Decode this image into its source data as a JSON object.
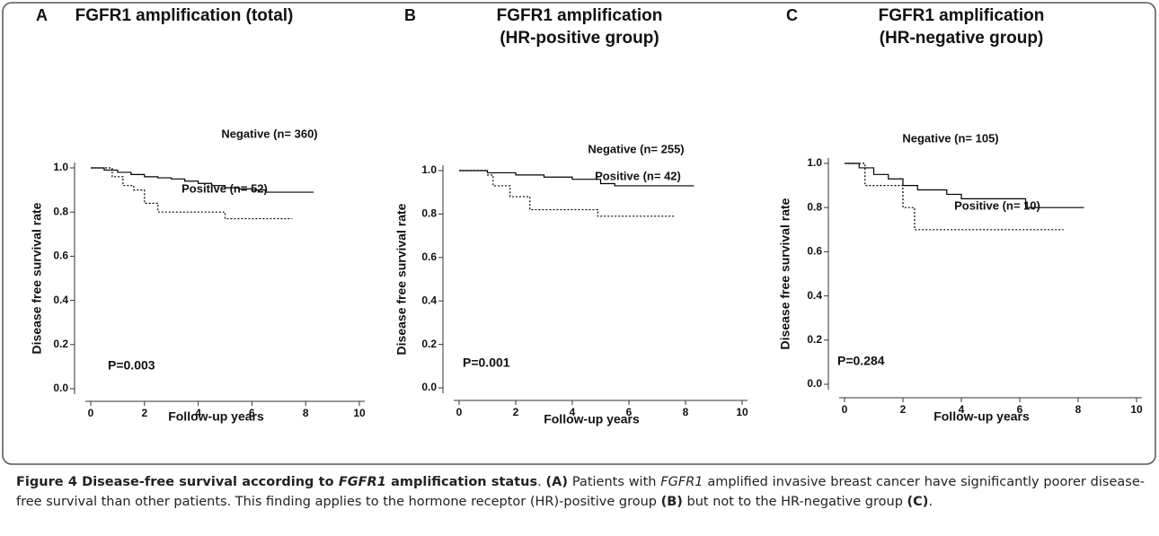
{
  "chart_data": [
    {
      "type": "line",
      "panel_label": "A",
      "title": [
        "FGFR1 amplification (total)"
      ],
      "xlabel": "Follow-up years",
      "ylabel": "Disease free survival rate",
      "annotation": "P=0.003",
      "xlim": [
        0,
        10
      ],
      "xticks": [
        0,
        2,
        4,
        6,
        8,
        10
      ],
      "ylim": [
        0,
        1
      ],
      "yticks": [
        {
          "value": 0,
          "label": "0.0"
        },
        {
          "value": 0.2,
          "label": "0.2"
        },
        {
          "value": 0.4,
          "label": "0.4"
        },
        {
          "value": 0.6,
          "label": "0.6"
        },
        {
          "value": 0.8,
          "label": "0.8"
        },
        {
          "value": 1,
          "label": "1.0"
        }
      ],
      "series": [
        {
          "name": "Negative (n= 360)",
          "color": "#000000",
          "line_style": "solid",
          "x": [
            0,
            0.5,
            1,
            1.5,
            2,
            2.5,
            3,
            3.5,
            4,
            4.5,
            5,
            5.5,
            6,
            6.5,
            7,
            7.5,
            8.3
          ],
          "values": [
            1,
            0.99,
            0.98,
            0.97,
            0.96,
            0.955,
            0.95,
            0.94,
            0.93,
            0.92,
            0.91,
            0.905,
            0.9,
            0.89,
            0.89,
            0.89,
            0.89
          ]
        },
        {
          "name": "Positive (n= 52)",
          "color": "#000000",
          "line_style": "dotted",
          "x": [
            0,
            0.8,
            1.2,
            1.6,
            2,
            2.5,
            5,
            7.5
          ],
          "values": [
            1,
            0.96,
            0.92,
            0.9,
            0.84,
            0.8,
            0.77,
            0.77
          ]
        }
      ]
    },
    {
      "type": "line",
      "panel_label": "B",
      "title": [
        "FGFR1 amplification",
        "(HR-positive group)"
      ],
      "xlabel": "Follow-up years",
      "ylabel": "Disease free survival rate",
      "annotation": "P=0.001",
      "xlim": [
        0,
        10
      ],
      "xticks": [
        0,
        2,
        4,
        6,
        8,
        10
      ],
      "ylim": [
        0,
        1
      ],
      "yticks": [
        {
          "value": 0,
          "label": "0.0"
        },
        {
          "value": 0.2,
          "label": "0.2"
        },
        {
          "value": 0.4,
          "label": "0.4"
        },
        {
          "value": 0.6,
          "label": "0.6"
        },
        {
          "value": 0.8,
          "label": "0.8"
        },
        {
          "value": 1,
          "label": "1.0"
        }
      ],
      "series": [
        {
          "name": "Negative (n= 255)",
          "color": "#000000",
          "line_style": "solid",
          "x": [
            0,
            1,
            2,
            3,
            4,
            5,
            5.5,
            8.3
          ],
          "values": [
            1,
            0.99,
            0.98,
            0.97,
            0.96,
            0.94,
            0.93,
            0.93
          ]
        },
        {
          "name": "Positive (n= 42)",
          "color": "#000000",
          "line_style": "dotted",
          "x": [
            0,
            1,
            1.2,
            1.8,
            2.5,
            4.9,
            7.6
          ],
          "values": [
            1,
            0.98,
            0.93,
            0.88,
            0.82,
            0.79,
            0.79
          ]
        }
      ]
    },
    {
      "type": "line",
      "panel_label": "C",
      "title": [
        "FGFR1 amplification",
        "(HR-negative group)"
      ],
      "xlabel": "Follow-up years",
      "ylabel": "Disease free survival rate",
      "annotation": "P=0.284",
      "xlim": [
        0,
        10
      ],
      "xticks": [
        0,
        2,
        4,
        6,
        8,
        10
      ],
      "ylim": [
        0,
        1
      ],
      "yticks": [
        {
          "value": 0,
          "label": "0.0"
        },
        {
          "value": 0.2,
          "label": "0.2"
        },
        {
          "value": 0.4,
          "label": "0.4"
        },
        {
          "value": 0.6,
          "label": "0.6"
        },
        {
          "value": 0.8,
          "label": "0.8"
        },
        {
          "value": 1,
          "label": "1.0"
        }
      ],
      "series": [
        {
          "name": "Negative (n= 105)",
          "color": "#000000",
          "line_style": "solid",
          "x": [
            0,
            0.5,
            1,
            1.5,
            2,
            2.5,
            3.5,
            4,
            6.2,
            8.2
          ],
          "values": [
            1,
            0.98,
            0.95,
            0.93,
            0.9,
            0.88,
            0.86,
            0.84,
            0.8,
            0.8
          ]
        },
        {
          "name": "Positive (n= 10)",
          "color": "#000000",
          "line_style": "dotted",
          "x": [
            0,
            0.7,
            2,
            2.4,
            7.5
          ],
          "values": [
            1,
            0.9,
            0.8,
            0.7,
            0.7
          ]
        }
      ]
    }
  ],
  "caption": {
    "runs": [
      "Figure 4 Disease-free survival according to ",
      "FGFR1",
      " amplification status",
      ". ",
      "(A)",
      " Patients with ",
      "FGFR1",
      " amplified invasive breast cancer have significantly poorer disease-free survival than other patients. This finding applies to the hormone receptor (HR)-positive group ",
      "(B)",
      " but not to the HR-negative group ",
      "(C)",
      "."
    ]
  }
}
